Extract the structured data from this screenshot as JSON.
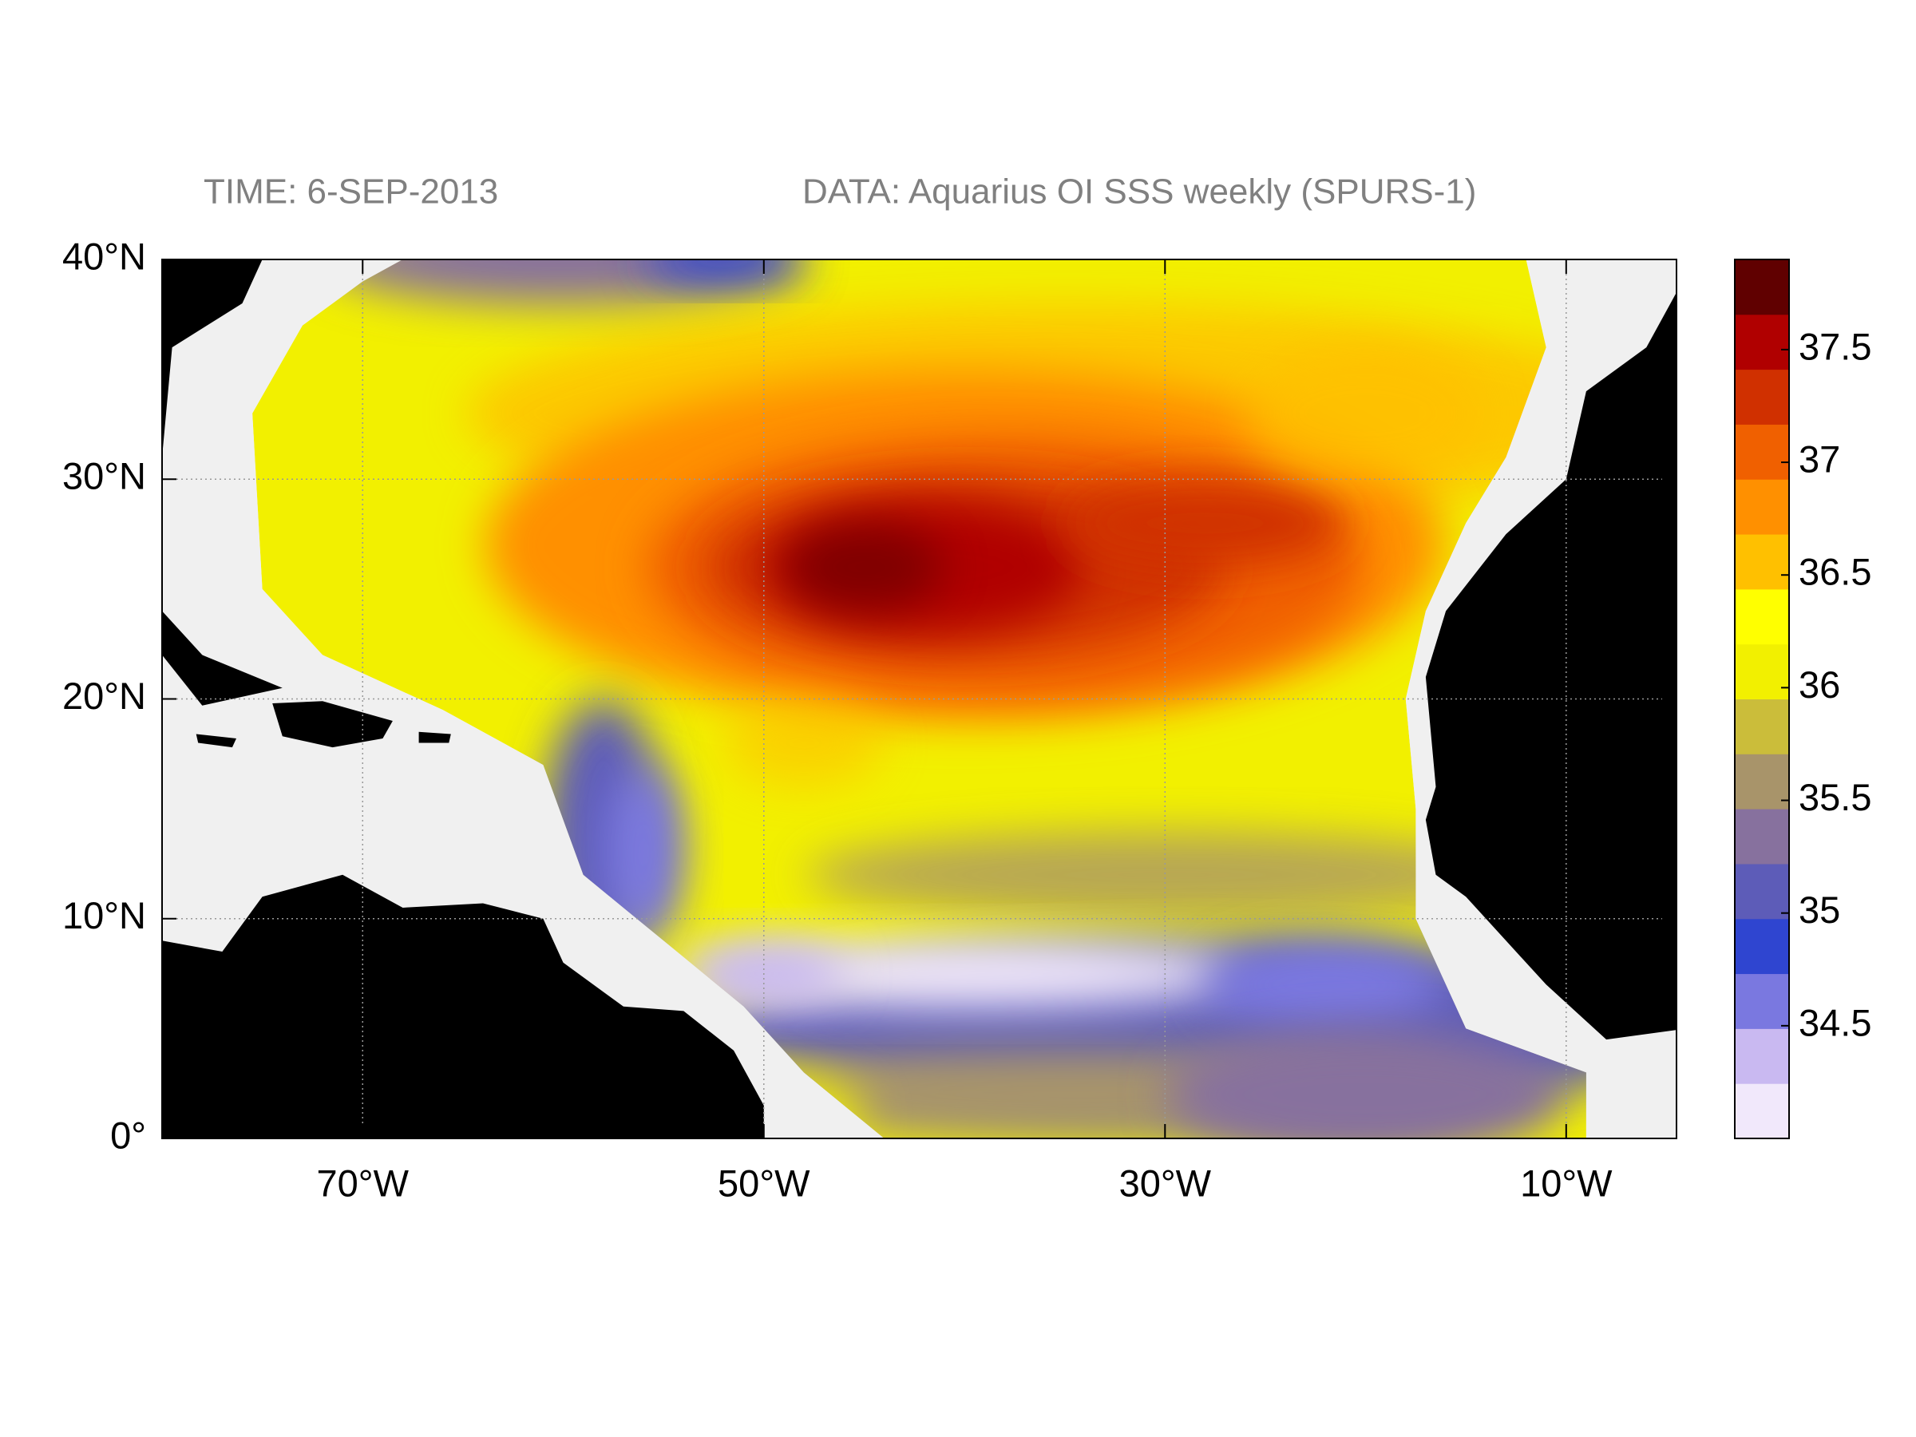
{
  "map": {
    "time_label": "TIME: 6-SEP-2013",
    "data_label": "DATA: Aquarius OI SSS weekly (SPURS-1)",
    "xlim": [
      -80,
      -4.5
    ],
    "ylim": [
      0,
      40
    ],
    "xticks": [
      {
        "value": -70,
        "label": "70°W"
      },
      {
        "value": -50,
        "label": "50°W"
      },
      {
        "value": -30,
        "label": "30°W"
      },
      {
        "value": -10,
        "label": "10°W"
      }
    ],
    "yticks": [
      {
        "value": 0,
        "label": "0°"
      },
      {
        "value": 10,
        "label": "10°N"
      },
      {
        "value": 20,
        "label": "20°N"
      },
      {
        "value": 30,
        "label": "30°N"
      },
      {
        "value": 40,
        "label": "40°N"
      }
    ],
    "grid": true,
    "colorbar": {
      "lim": [
        34.0,
        37.9
      ],
      "ticks": [
        34.5,
        35,
        35.5,
        36,
        36.5,
        37,
        37.5
      ],
      "colormap": [
        "#f1e8fb",
        "#c9b9f1",
        "#7a78e0",
        "#2f45d0",
        "#5d5cb8",
        "#87719e",
        "#a8946a",
        "#cbbd3a",
        "#f2f000",
        "#ffff00",
        "#ffc000",
        "#ff9000",
        "#f06000",
        "#d03000",
        "#b00000",
        "#600000"
      ]
    }
  }
}
